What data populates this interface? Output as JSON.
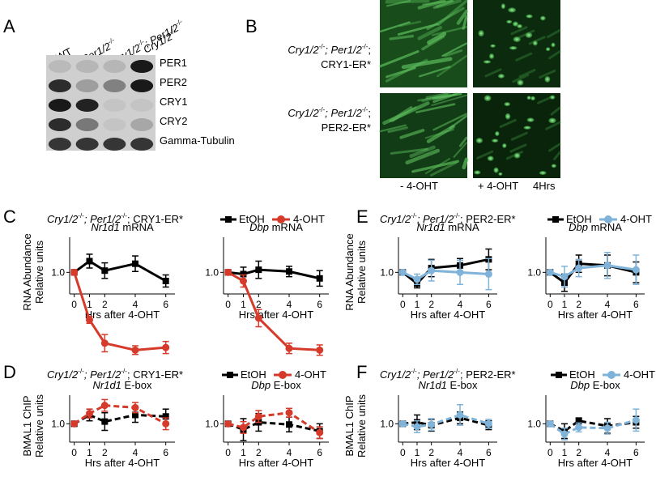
{
  "panels": {
    "A": "A",
    "B": "B",
    "C": "C",
    "D": "D",
    "E": "E",
    "F": "F"
  },
  "blot": {
    "columns": [
      "WT",
      "Per1/2",
      "Cry1/2",
      "; Per1/2",
      "Cry1/2"
    ],
    "col_sup": "-/-",
    "rows": [
      "PER1",
      "PER2",
      "CRY1",
      "CRY2",
      "Gamma-Tubulin"
    ],
    "intensity": [
      [
        0.1,
        0.12,
        0.12,
        0.95
      ],
      [
        0.85,
        0.25,
        0.4,
        0.95
      ],
      [
        0.95,
        0.9,
        0.05,
        0.05
      ],
      [
        0.85,
        0.45,
        0.05,
        0.2
      ],
      [
        0.8,
        0.8,
        0.8,
        0.8
      ]
    ]
  },
  "imaging": {
    "row1_label_a": "Cry1/2",
    "row1_label_b": "; Per1/2",
    "row1_label_c": ";",
    "row1_label_d": "CRY1-ER*",
    "row2_label_a": "Cry1/2",
    "row2_label_b": "; Per1/2",
    "row2_label_c": ";",
    "row2_label_d": "PER2-ER*",
    "minus": "- 4-OHT",
    "plus": "+ 4-OHT",
    "time": "4Hrs"
  },
  "common": {
    "genotype_a": "Cry1/2",
    "genotype_b": "; Per1/2",
    "genotype_c": "; ",
    "sup": "-/-",
    "legend_etoh": "EtOH",
    "legend_4oht": "4-OHT",
    "xlabel": "Hrs after 4-OHT",
    "rna_ylabel_1": "RNA Abundance",
    "rna_ylabel_2": "Relative units",
    "chip_ylabel_1": "BMAL1 ChIP",
    "chip_ylabel_2": "Relative units"
  },
  "chart_data": [
    {
      "id": "C1",
      "type": "line",
      "panel": "C",
      "construct": "CRY1-ER*",
      "title_gene": "Nr1d1",
      "title_rest": " mRNA",
      "x": [
        0,
        1,
        2,
        4,
        6
      ],
      "yticks": [
        0,
        0.5,
        1.0,
        1.5
      ],
      "ylim": [
        0,
        1.5
      ],
      "series": [
        {
          "name": "EtOH",
          "color": "#000000",
          "values": [
            1.0,
            1.13,
            1.02,
            1.1,
            0.9
          ],
          "err": [
            0.03,
            0.08,
            0.09,
            0.09,
            0.07
          ]
        },
        {
          "name": "4-OHT",
          "color": "#d63a2a",
          "values": [
            1.0,
            0.45,
            0.18,
            0.1,
            0.13
          ],
          "err": [
            0.03,
            0.04,
            0.1,
            0.05,
            0.07
          ]
        }
      ]
    },
    {
      "id": "C2",
      "type": "line",
      "panel": "C",
      "construct": "CRY1-ER*",
      "title_gene": "Dbp",
      "title_rest": " mRNA",
      "x": [
        0,
        1,
        2,
        4,
        6
      ],
      "yticks": [
        0,
        0.5,
        1.0,
        1.5
      ],
      "ylim": [
        0,
        1.5
      ],
      "series": [
        {
          "name": "EtOH",
          "color": "#000000",
          "values": [
            1.0,
            0.98,
            1.03,
            1.01,
            0.93
          ],
          "err": [
            0.03,
            0.08,
            0.1,
            0.06,
            0.09
          ]
        },
        {
          "name": "4-OHT",
          "color": "#d63a2a",
          "values": [
            1.0,
            0.9,
            0.47,
            0.12,
            0.1
          ],
          "err": [
            0.03,
            0.07,
            0.1,
            0.06,
            0.06
          ]
        }
      ]
    },
    {
      "id": "E1",
      "type": "line",
      "panel": "E",
      "construct": "PER2-ER*",
      "title_gene": "Nr1d1",
      "title_rest": " mRNA",
      "x": [
        0,
        1,
        2,
        4,
        6
      ],
      "yticks": [
        0,
        0.5,
        1.0,
        1.5
      ],
      "ylim": [
        0,
        1.5
      ],
      "series": [
        {
          "name": "EtOH",
          "color": "#000000",
          "values": [
            1.0,
            0.87,
            1.05,
            1.08,
            1.15
          ],
          "err": [
            0.02,
            0.05,
            0.1,
            0.08,
            0.12
          ]
        },
        {
          "name": "4-OHT",
          "color": "#7fb3d9",
          "values": [
            1.0,
            0.92,
            1.02,
            1.0,
            0.98
          ],
          "err": [
            0.02,
            0.06,
            0.12,
            0.14,
            0.18
          ]
        }
      ]
    },
    {
      "id": "E2",
      "type": "line",
      "panel": "E",
      "construct": "PER2-ER*",
      "title_gene": "Dbp",
      "title_rest": " mRNA",
      "x": [
        0,
        1,
        2,
        4,
        6
      ],
      "yticks": [
        0,
        0.5,
        1.0,
        1.5
      ],
      "ylim": [
        0,
        1.5
      ],
      "series": [
        {
          "name": "EtOH",
          "color": "#000000",
          "values": [
            1.0,
            0.88,
            1.1,
            1.08,
            1.0
          ],
          "err": [
            0.02,
            0.1,
            0.1,
            0.12,
            0.12
          ]
        },
        {
          "name": "4-OHT",
          "color": "#7fb3d9",
          "values": [
            1.0,
            0.95,
            1.05,
            1.08,
            1.03
          ],
          "err": [
            0.02,
            0.12,
            0.1,
            0.15,
            0.17
          ]
        }
      ]
    },
    {
      "id": "D1",
      "type": "line",
      "panel": "D",
      "construct": "CRY1-ER*",
      "title_gene": "Nr1d1",
      "title_rest": " E-box",
      "x": [
        0,
        1,
        2,
        4,
        6
      ],
      "yticks": [
        0,
        0.5,
        1.0,
        1.5
      ],
      "ylim": [
        0,
        1.5
      ],
      "series": [
        {
          "name": "EtOH",
          "color": "#000000",
          "values": [
            1.0,
            1.12,
            1.03,
            1.12,
            1.1
          ],
          "err": [
            0.02,
            0.08,
            0.12,
            0.1,
            0.1
          ]
        },
        {
          "name": "4-OHT",
          "color": "#d63a2a",
          "values": [
            1.0,
            1.14,
            1.25,
            1.22,
            1.0
          ],
          "err": [
            0.02,
            0.06,
            0.08,
            0.07,
            0.08
          ]
        }
      ]
    },
    {
      "id": "D2",
      "type": "line",
      "panel": "D",
      "construct": "CRY1-ER*",
      "title_gene": "Dbp",
      "title_rest": " E-box",
      "x": [
        0,
        1,
        2,
        4,
        6
      ],
      "yticks": [
        0,
        0.5,
        1.0,
        1.5
      ],
      "ylim": [
        0,
        1.5
      ],
      "series": [
        {
          "name": "EtOH",
          "color": "#000000",
          "values": [
            1.0,
            0.92,
            1.02,
            0.99,
            0.9
          ],
          "err": [
            0.02,
            0.15,
            0.12,
            0.1,
            0.1
          ]
        },
        {
          "name": "4-OHT",
          "color": "#d63a2a",
          "values": [
            1.0,
            0.95,
            1.1,
            1.15,
            0.88
          ],
          "err": [
            0.02,
            0.08,
            0.08,
            0.06,
            0.08
          ]
        }
      ]
    },
    {
      "id": "F1",
      "type": "line",
      "panel": "F",
      "construct": "PER2-ER*",
      "title_gene": "Nr1d1",
      "title_rest": " E-box",
      "x": [
        0,
        1,
        2,
        4,
        6
      ],
      "yticks": [
        0,
        0.5,
        1.0,
        1.5
      ],
      "ylim": [
        0,
        1.5
      ],
      "series": [
        {
          "name": "EtOH",
          "color": "#000000",
          "values": [
            1.0,
            1.02,
            0.98,
            1.08,
            0.98
          ],
          "err": [
            0.03,
            0.1,
            0.08,
            0.08,
            0.06
          ]
        },
        {
          "name": "4-OHT",
          "color": "#7fb3d9",
          "values": [
            1.0,
            0.96,
            0.99,
            1.12,
            1.0
          ],
          "err": [
            0.03,
            0.08,
            0.08,
            0.14,
            0.06
          ]
        }
      ]
    },
    {
      "id": "F2",
      "type": "line",
      "panel": "F",
      "construct": "PER2-ER*",
      "title_gene": "Dbp",
      "title_rest": " E-box",
      "x": [
        0,
        1,
        2,
        4,
        6
      ],
      "yticks": [
        0,
        0.5,
        1.0,
        1.5
      ],
      "ylim": [
        0,
        1.5
      ],
      "series": [
        {
          "name": "EtOH",
          "color": "#000000",
          "values": [
            1.0,
            0.9,
            1.04,
            0.97,
            1.02
          ],
          "err": [
            0.03,
            0.1,
            0.04,
            0.1,
            0.08
          ]
        },
        {
          "name": "4-OHT",
          "color": "#7fb3d9",
          "values": [
            1.0,
            0.86,
            0.95,
            0.94,
            1.05
          ],
          "err": [
            0.03,
            0.08,
            0.06,
            0.08,
            0.15
          ]
        }
      ]
    }
  ]
}
